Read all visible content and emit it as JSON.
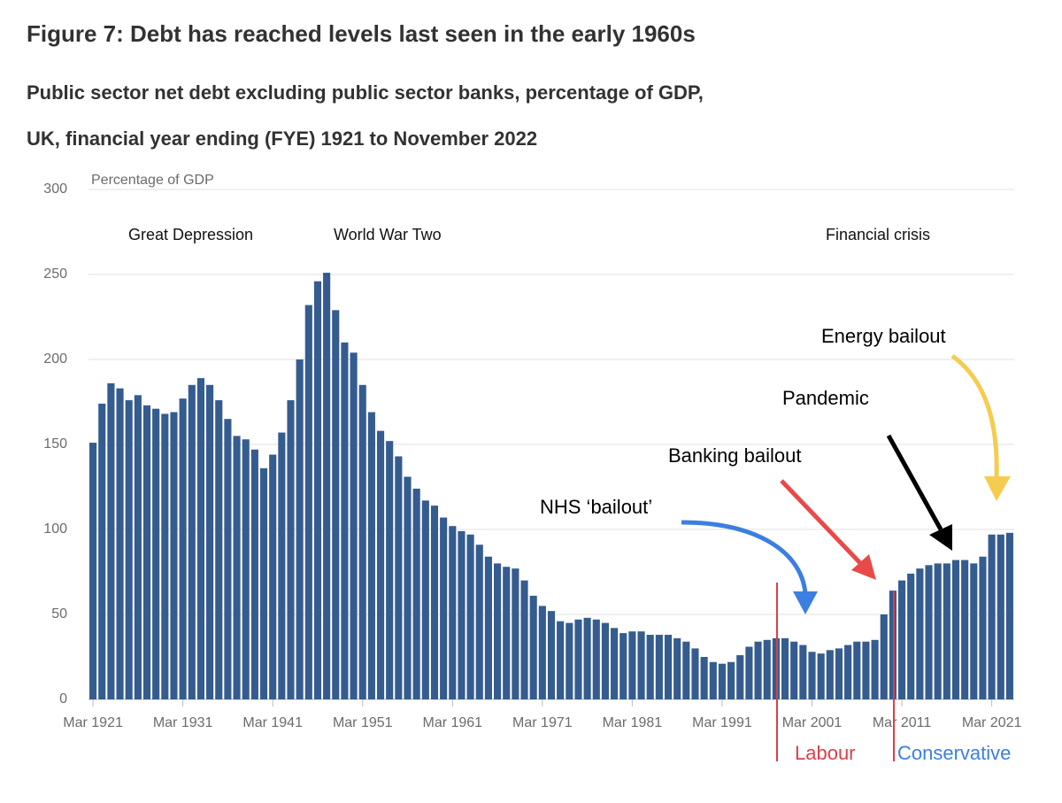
{
  "chart_data": {
    "type": "bar",
    "title": "Figure 7: Debt has reached levels last seen in the early 1960s",
    "subtitle": [
      "Public sector net debt excluding public sector banks, percentage of GDP,",
      "UK, financial year ending (FYE) 1921 to November 2022"
    ],
    "y_label": "Percentage of GDP",
    "categories": [
      "Mar 1921",
      null,
      null,
      null,
      null,
      null,
      null,
      null,
      null,
      null,
      "Mar 1931",
      null,
      null,
      null,
      null,
      null,
      null,
      null,
      null,
      null,
      "Mar 1941",
      null,
      null,
      null,
      null,
      null,
      null,
      null,
      null,
      null,
      "Mar 1951",
      null,
      null,
      null,
      null,
      null,
      null,
      null,
      null,
      null,
      "Mar 1961",
      null,
      null,
      null,
      null,
      null,
      null,
      null,
      null,
      null,
      "Mar 1971",
      null,
      null,
      null,
      null,
      null,
      null,
      null,
      null,
      null,
      "Mar 1981",
      null,
      null,
      null,
      null,
      null,
      null,
      null,
      null,
      null,
      "Mar 1991",
      null,
      null,
      null,
      null,
      null,
      null,
      null,
      null,
      null,
      "Mar 2001",
      null,
      null,
      null,
      null,
      null,
      null,
      null,
      null,
      null,
      "Mar 2011",
      null,
      null,
      null,
      null,
      null,
      null,
      null,
      null,
      null,
      "Mar 2021",
      null,
      null
    ],
    "values": [
      151,
      174,
      186,
      183,
      176,
      179,
      173,
      171,
      168,
      169,
      177,
      185,
      189,
      185,
      176,
      165,
      155,
      153,
      147,
      136,
      144,
      157,
      176,
      200,
      232,
      246,
      251,
      229,
      210,
      204,
      185,
      169,
      158,
      152,
      143,
      131,
      124,
      117,
      114,
      107,
      102,
      99,
      97,
      91,
      84,
      80,
      78,
      77,
      70,
      61,
      55,
      52,
      46,
      45,
      47,
      48,
      47,
      45,
      42,
      39,
      40,
      40,
      38,
      38,
      38,
      36,
      34,
      30,
      25,
      22,
      21,
      22,
      26,
      31,
      34,
      35,
      36,
      36,
      34,
      32,
      28,
      27,
      29,
      30,
      32,
      34,
      34,
      35,
      50,
      64,
      70,
      74,
      77,
      79,
      80,
      80,
      82,
      82,
      80,
      84,
      97,
      97,
      98
    ],
    "color": "#355c8f",
    "ylim": [
      0,
      300
    ],
    "yticks": [
      0,
      50,
      100,
      150,
      200,
      250,
      300
    ],
    "grid": true,
    "annotations": [
      "Great Depression",
      "World War Two",
      "Financial crisis",
      "Energy bailout",
      "Pandemic",
      "Banking bailout",
      "NHS ‘bailout’",
      "Labour",
      "Conservative"
    ]
  }
}
